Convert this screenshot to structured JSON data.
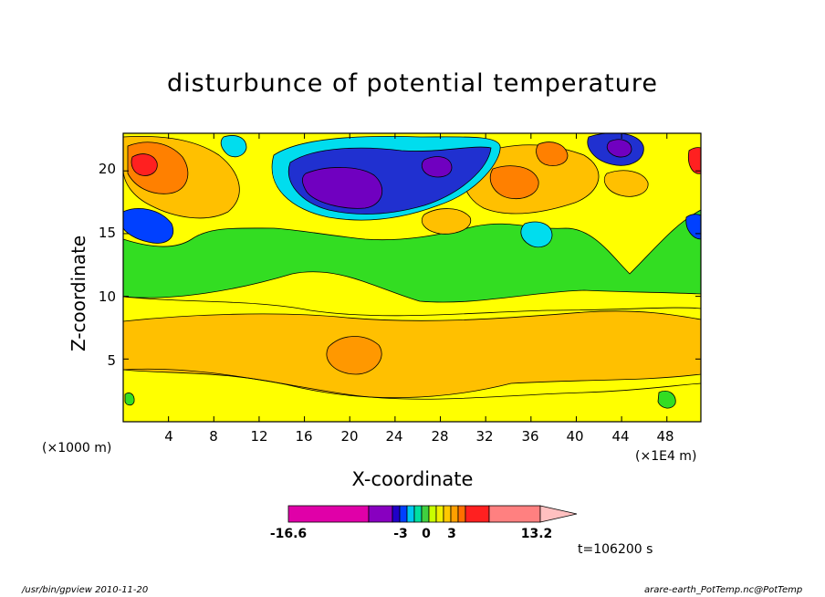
{
  "chart_data": {
    "type": "heatmap",
    "title": "disturbunce of potential temperature",
    "xlabel": "X-coordinate",
    "ylabel": "Z-coordinate",
    "x_unit_label": "(×1000 m)",
    "x_scale_label": "(×1E4 m)",
    "x_ticks": [
      "4",
      "8",
      "12",
      "16",
      "20",
      "24",
      "28",
      "32",
      "36",
      "40",
      "44",
      "48"
    ],
    "y_ticks": [
      "5",
      "10",
      "15",
      "20"
    ],
    "xlim": [
      0,
      51
    ],
    "ylim": [
      0,
      23
    ],
    "grid": false,
    "colorbar": {
      "labels": [
        "-16.6",
        "-3",
        "0",
        "3",
        "13.2"
      ],
      "min": -16.6,
      "max": 13.2,
      "colors": [
        "#e000a8",
        "#8800c0",
        "#2000c8",
        "#0040ff",
        "#00c8f0",
        "#00e0a0",
        "#40d040",
        "#c8ff00",
        "#f0f000",
        "#ffc800",
        "#ffa000",
        "#ff7000",
        "#ff2020",
        "#ff8080",
        "#ffc0c0"
      ]
    },
    "bands": [
      {
        "level": "yellow-lower",
        "color": "#ffff00"
      },
      {
        "level": "orange",
        "color": "#ffc000"
      },
      {
        "level": "green",
        "color": "#33dd22"
      },
      {
        "level": "deep-orange",
        "color": "#ff8000"
      },
      {
        "level": "blue",
        "color": "#2030d0"
      },
      {
        "level": "purple",
        "color": "#7000c0"
      }
    ],
    "time_label": "t=106200 s"
  },
  "footer": {
    "left": "/usr/bin/gpview  2010-11-20",
    "right": "arare-earth_PotTemp.nc@PotTemp"
  }
}
